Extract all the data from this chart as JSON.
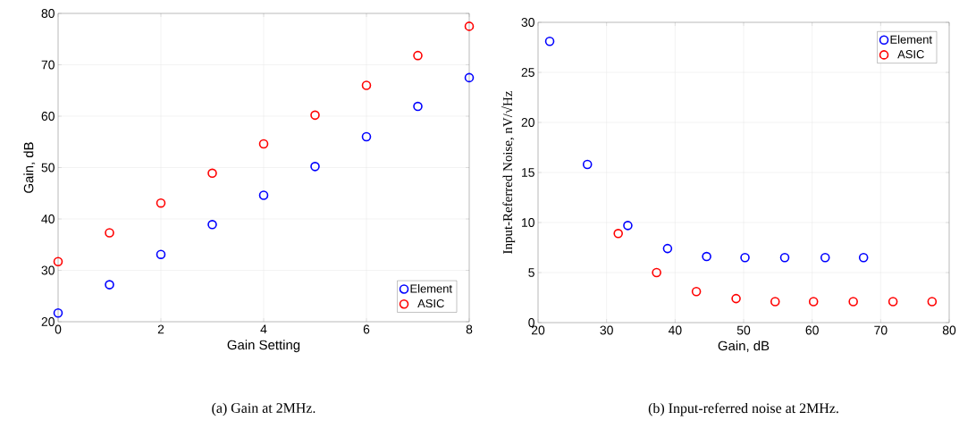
{
  "chart_data": [
    {
      "type": "scatter",
      "xlabel": "Gain Setting",
      "ylabel": "Gain, dB",
      "x": [
        0,
        1,
        2,
        3,
        4,
        5,
        6,
        7,
        8
      ],
      "xlim": [
        0,
        8
      ],
      "xticks": [
        0,
        2,
        4,
        6,
        8
      ],
      "ylim": [
        20,
        80
      ],
      "yticks": [
        20,
        30,
        40,
        50,
        60,
        70,
        80
      ],
      "grid": true,
      "legend": "bottom right",
      "marker": "circle",
      "series": [
        {
          "name": "Element",
          "color": "#0000ff",
          "values": [
            21.7,
            27.2,
            33.1,
            38.9,
            44.6,
            50.2,
            56.0,
            61.9,
            67.5
          ]
        },
        {
          "name": "ASIC",
          "color": "#ff0000",
          "values": [
            31.7,
            37.3,
            43.1,
            48.9,
            54.6,
            60.2,
            66.0,
            71.8,
            77.5
          ]
        }
      ],
      "annotations": [
        "(a) Gain at 2MHz."
      ]
    },
    {
      "type": "scatter",
      "xlabel": "Gain, dB",
      "ylabel": "Input-Referred Noise, nV/√Hz",
      "xlim": [
        20,
        80
      ],
      "xticks": [
        20,
        30,
        40,
        50,
        60,
        70,
        80
      ],
      "ylim": [
        0,
        30
      ],
      "yticks": [
        0,
        5,
        10,
        15,
        20,
        25,
        30
      ],
      "grid": true,
      "legend": "top right",
      "marker": "circle",
      "series": [
        {
          "name": "Element",
          "color": "#0000ff",
          "x": [
            21.7,
            27.2,
            33.1,
            38.9,
            44.6,
            50.2,
            56.0,
            61.9,
            67.5
          ],
          "values": [
            28.1,
            15.8,
            9.7,
            7.4,
            6.6,
            6.5,
            6.5,
            6.5,
            6.5
          ]
        },
        {
          "name": "ASIC",
          "color": "#ff0000",
          "x": [
            31.7,
            37.3,
            43.1,
            48.9,
            54.6,
            60.2,
            66.0,
            71.8,
            77.5
          ],
          "values": [
            8.9,
            5.0,
            3.1,
            2.4,
            2.1,
            2.1,
            2.1,
            2.1,
            2.1
          ]
        }
      ],
      "annotations": [
        "(b) Input-referred noise at 2MHz."
      ]
    }
  ]
}
